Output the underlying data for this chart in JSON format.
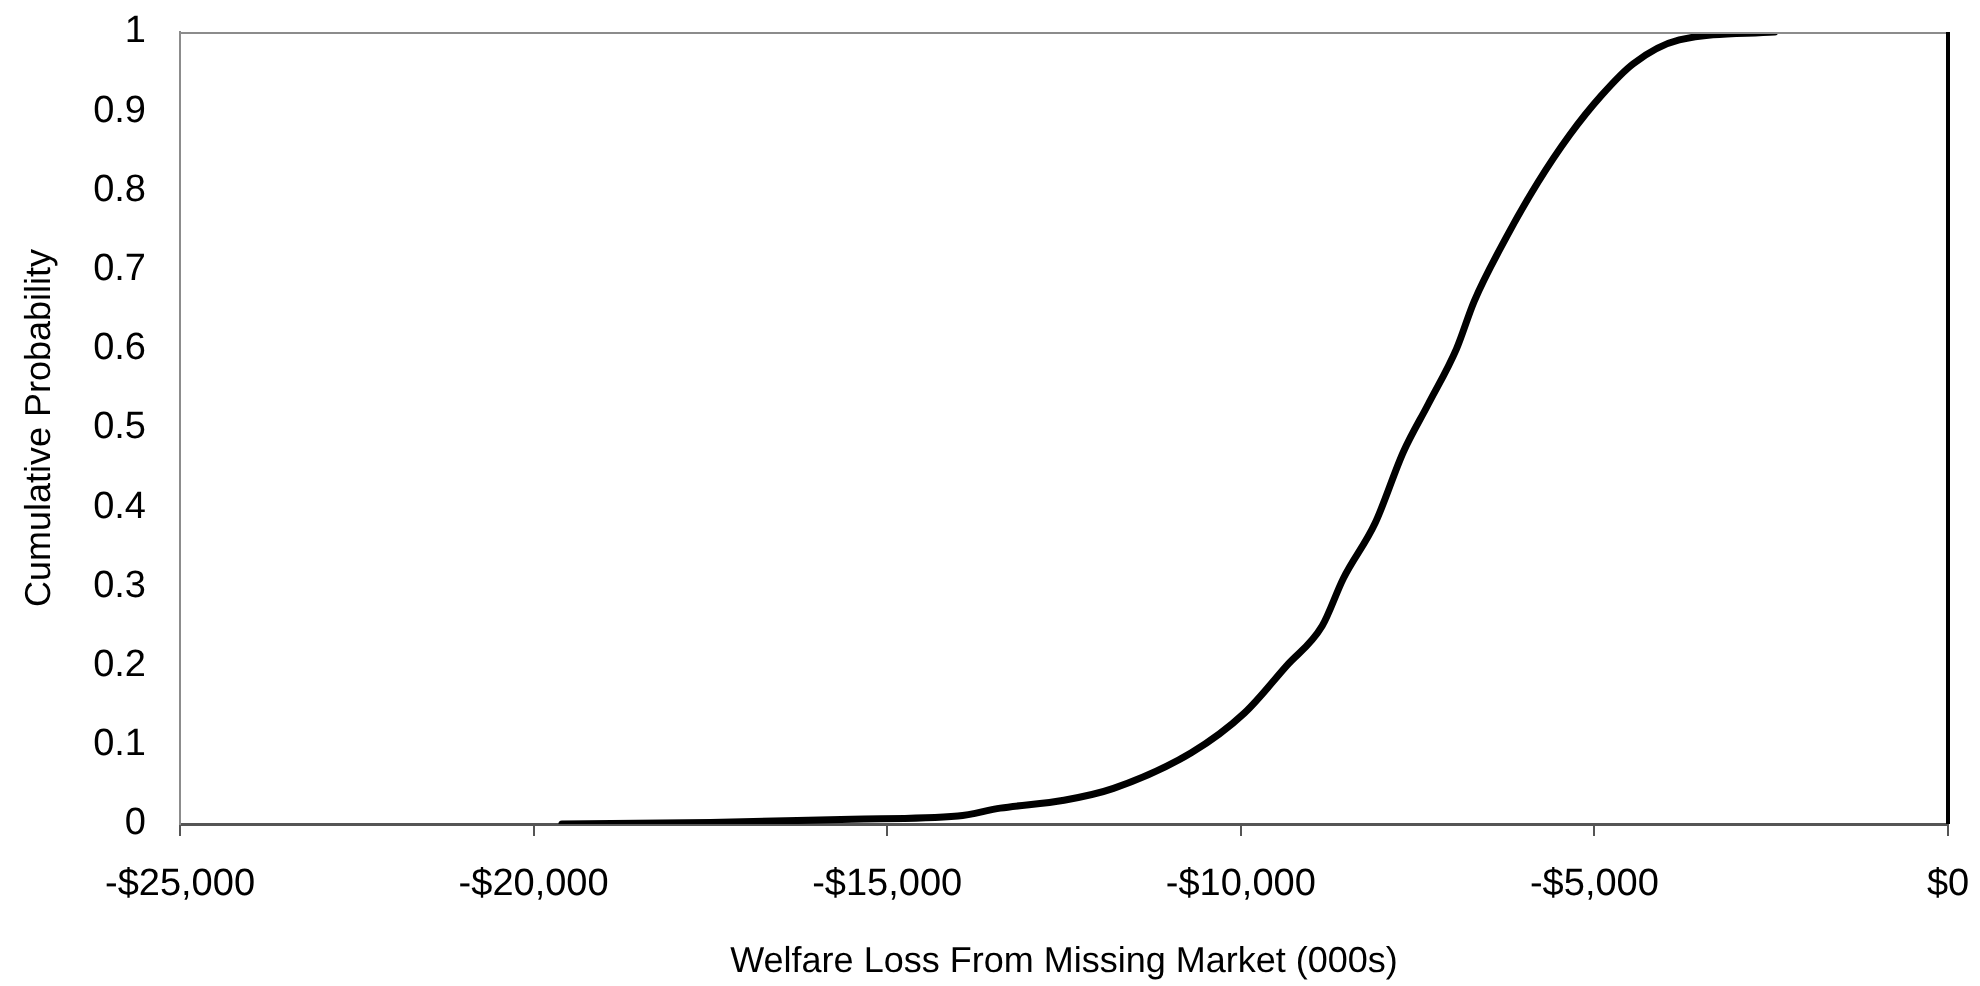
{
  "chart_data": {
    "type": "line",
    "xlabel": "Welfare Loss From Missing Market (000s)",
    "ylabel": "Cumulative Probability",
    "x": [
      -19600,
      -17500,
      -15500,
      -14000,
      -13400,
      -12500,
      -11800,
      -10700,
      -9950,
      -9350,
      -8850,
      -8550,
      -8100,
      -7700,
      -7350,
      -6950,
      -6700,
      -6250,
      -5800,
      -5350,
      -4900,
      -4450,
      -3800,
      -2450
    ],
    "values": [
      0,
      0.002,
      0.006,
      0.01,
      0.02,
      0.03,
      0.045,
      0.09,
      0.14,
      0.2,
      0.25,
      0.31,
      0.38,
      0.47,
      0.53,
      0.6,
      0.66,
      0.74,
      0.81,
      0.87,
      0.92,
      0.96,
      0.99,
      1
    ],
    "color": "#000000",
    "marker": "none",
    "line_style": "solid",
    "legend": false,
    "xlim": [
      -25000,
      0
    ],
    "xticks": [
      {
        "value": -25000,
        "label": "-$25,000"
      },
      {
        "value": -20000,
        "label": "-$20,000"
      },
      {
        "value": -15000,
        "label": "-$15,000"
      },
      {
        "value": -10000,
        "label": "-$10,000"
      },
      {
        "value": -5000,
        "label": "-$5,000"
      },
      {
        "value": 0,
        "label": "$0"
      }
    ],
    "ylim": [
      0,
      1
    ],
    "yticks": [
      0,
      0.1,
      0.2,
      0.3,
      0.4,
      0.5,
      0.6,
      0.7,
      0.8,
      0.9,
      1
    ]
  }
}
